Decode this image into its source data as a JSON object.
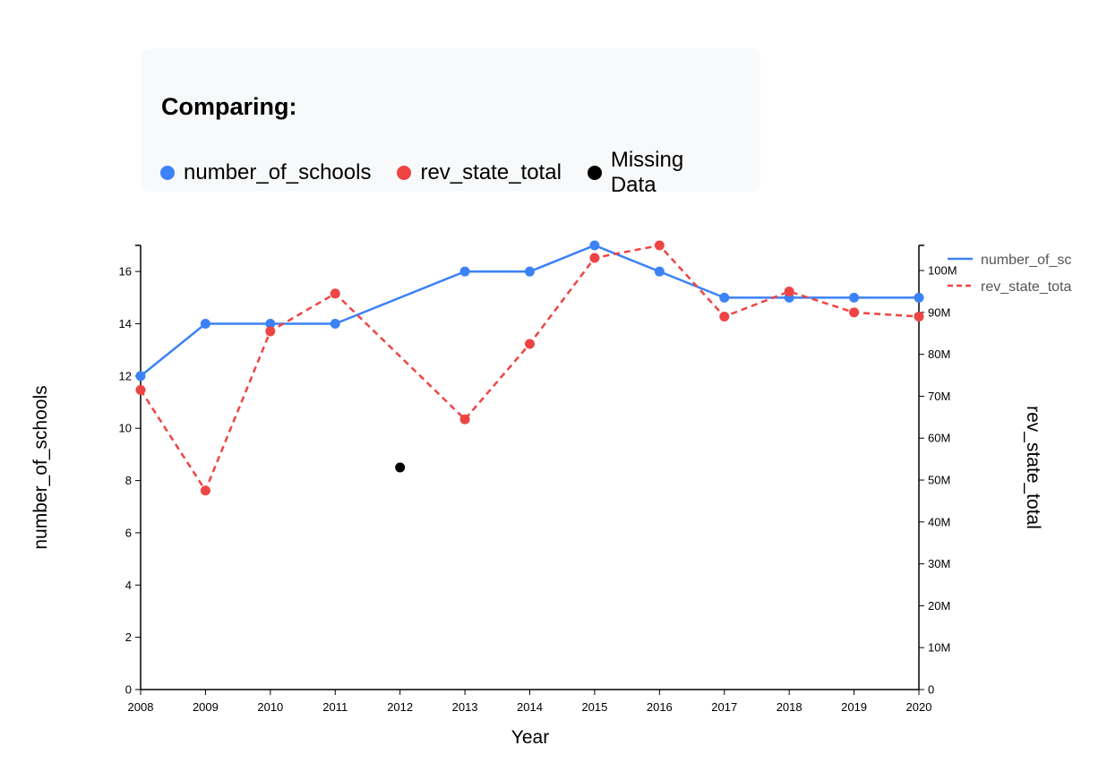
{
  "legend_card": {
    "title": "Comparing:",
    "items": [
      {
        "label": "number_of_schools",
        "color": "#3b82f6"
      },
      {
        "label": "rev_state_total",
        "color": "#ef4444"
      },
      {
        "label": "Missing Data",
        "color": "#000000"
      }
    ]
  },
  "chart_data": {
    "type": "line",
    "x": [
      2008,
      2009,
      2010,
      2011,
      2012,
      2013,
      2014,
      2015,
      2016,
      2017,
      2018,
      2019,
      2020
    ],
    "xlabel": "Year",
    "ylabel_left": "number_of_schools",
    "ylabel_right": "rev_state_total",
    "ylim_left": [
      0,
      17
    ],
    "ylim_right": [
      0,
      106000000
    ],
    "yticks_left": [
      0,
      2,
      4,
      6,
      8,
      10,
      12,
      14,
      16
    ],
    "yticks_right": [
      {
        "value": 0,
        "label": "0"
      },
      {
        "value": 10000000,
        "label": "10M"
      },
      {
        "value": 20000000,
        "label": "20M"
      },
      {
        "value": 30000000,
        "label": "30M"
      },
      {
        "value": 40000000,
        "label": "40M"
      },
      {
        "value": 50000000,
        "label": "50M"
      },
      {
        "value": 60000000,
        "label": "60M"
      },
      {
        "value": 70000000,
        "label": "70M"
      },
      {
        "value": 80000000,
        "label": "80M"
      },
      {
        "value": 90000000,
        "label": "90M"
      },
      {
        "value": 100000000,
        "label": "100M"
      }
    ],
    "grid": false,
    "legend_position": "top-right",
    "series": [
      {
        "name": "number_of_schools",
        "legend_label": "number_of_sc",
        "axis": "left",
        "color": "#3b82f6",
        "dashed": false,
        "values": [
          12,
          14,
          14,
          14,
          null,
          16,
          16,
          17,
          16,
          15,
          15,
          15,
          15
        ]
      },
      {
        "name": "rev_state_total",
        "legend_label": "rev_state_tota",
        "axis": "right",
        "color": "#ef4444",
        "dashed": true,
        "values": [
          71500000,
          47500000,
          85500000,
          94500000,
          null,
          64500000,
          82500000,
          103000000,
          106000000,
          89000000,
          95000000,
          90000000,
          89000000
        ]
      }
    ],
    "missing_points": [
      {
        "x": 2012,
        "y_left": 8.5,
        "color": "#000000"
      }
    ]
  }
}
